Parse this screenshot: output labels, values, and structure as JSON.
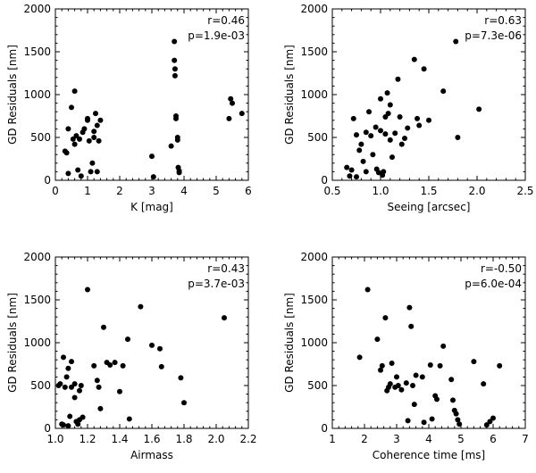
{
  "chart_data": [
    {
      "type": "scatter",
      "xlabel": "K [mag]",
      "ylabel": "GD Residuals [nm]",
      "xlim": [
        0,
        6
      ],
      "ylim": [
        0,
        2000
      ],
      "xticks": [
        "0",
        "1",
        "2",
        "3",
        "4",
        "5",
        "6"
      ],
      "yticks": [
        "0",
        "500",
        "1000",
        "1500",
        "2000"
      ],
      "annotations": [
        "r=0.46",
        "p=1.9e-03"
      ],
      "x": [
        0.3,
        0.35,
        0.4,
        0.4,
        0.5,
        0.55,
        0.6,
        0.6,
        0.65,
        0.7,
        0.75,
        0.8,
        0.85,
        0.9,
        1.0,
        1.0,
        1.05,
        1.1,
        1.15,
        1.2,
        1.2,
        1.25,
        1.3,
        1.3,
        1.35,
        1.4,
        3.0,
        3.05,
        3.6,
        3.7,
        3.7,
        3.72,
        3.72,
        3.75,
        3.75,
        3.8,
        3.8,
        3.82,
        3.85,
        3.85,
        5.4,
        5.45,
        5.5,
        5.8
      ],
      "y": [
        340,
        320,
        80,
        600,
        850,
        480,
        1040,
        420,
        520,
        120,
        480,
        50,
        560,
        600,
        700,
        720,
        460,
        100,
        200,
        570,
        500,
        780,
        100,
        640,
        460,
        700,
        280,
        40,
        400,
        1620,
        1400,
        1300,
        1220,
        750,
        720,
        500,
        470,
        150,
        110,
        90,
        720,
        950,
        900,
        780
      ]
    },
    {
      "type": "scatter",
      "xlabel": "Seeing [arcsec]",
      "ylabel": "GD Residuals [nm]",
      "xlim": [
        0.5,
        2.5
      ],
      "ylim": [
        0,
        2000
      ],
      "xticks": [
        "0.5",
        "1.0",
        "1.5",
        "2.0",
        "2.5"
      ],
      "yticks": [
        "0",
        "500",
        "1000",
        "1500",
        "2000"
      ],
      "annotations": [
        "r=0.63",
        "p=7.3e-06"
      ],
      "x": [
        0.65,
        0.68,
        0.7,
        0.72,
        0.75,
        0.75,
        0.78,
        0.8,
        0.82,
        0.85,
        0.85,
        0.88,
        0.9,
        0.92,
        0.95,
        0.96,
        0.98,
        1.0,
        1.0,
        1.02,
        1.03,
        1.05,
        1.05,
        1.07,
        1.08,
        1.1,
        1.1,
        1.12,
        1.15,
        1.18,
        1.2,
        1.22,
        1.25,
        1.28,
        1.35,
        1.38,
        1.4,
        1.45,
        1.5,
        1.65,
        1.78,
        1.8,
        2.02
      ],
      "y": [
        150,
        50,
        120,
        720,
        40,
        530,
        350,
        420,
        220,
        560,
        100,
        800,
        520,
        300,
        620,
        130,
        90,
        950,
        580,
        60,
        100,
        740,
        540,
        1020,
        780,
        880,
        470,
        270,
        550,
        1180,
        740,
        420,
        490,
        610,
        1410,
        720,
        640,
        1300,
        700,
        1040,
        1620,
        500,
        830
      ]
    },
    {
      "type": "scatter",
      "xlabel": "Airmass",
      "ylabel": "GD Residuals [nm]",
      "xlim": [
        1.0,
        2.2
      ],
      "ylim": [
        0,
        2000
      ],
      "xticks": [
        "1.0",
        "1.2",
        "1.4",
        "1.6",
        "1.8",
        "2.0",
        "2.2"
      ],
      "yticks": [
        "0",
        "500",
        "1000",
        "1500",
        "2000"
      ],
      "annotations": [
        "r=0.43",
        "p=3.7e-03"
      ],
      "x": [
        1.02,
        1.03,
        1.04,
        1.05,
        1.05,
        1.06,
        1.07,
        1.08,
        1.08,
        1.09,
        1.1,
        1.1,
        1.12,
        1.12,
        1.13,
        1.14,
        1.15,
        1.15,
        1.16,
        1.17,
        1.2,
        1.24,
        1.26,
        1.27,
        1.28,
        1.3,
        1.32,
        1.34,
        1.37,
        1.4,
        1.42,
        1.45,
        1.46,
        1.53,
        1.6,
        1.65,
        1.66,
        1.78,
        1.8,
        2.05
      ],
      "y": [
        500,
        520,
        50,
        830,
        40,
        480,
        600,
        700,
        30,
        140,
        780,
        480,
        360,
        520,
        80,
        50,
        100,
        440,
        500,
        130,
        1620,
        730,
        560,
        480,
        230,
        1180,
        770,
        740,
        770,
        430,
        730,
        1040,
        110,
        1420,
        970,
        930,
        720,
        590,
        300,
        1290
      ]
    },
    {
      "type": "scatter",
      "xlabel": "Coherence time [ms]",
      "ylabel": "GD Residuals [nm]",
      "xlim": [
        1,
        7
      ],
      "ylim": [
        0,
        2000
      ],
      "xticks": [
        "1",
        "2",
        "3",
        "4",
        "5",
        "6",
        "7"
      ],
      "yticks": [
        "0",
        "500",
        "1000",
        "1500",
        "2000"
      ],
      "annotations": [
        "r=-0.50",
        "p=6.0e-04"
      ],
      "x": [
        1.85,
        2.1,
        2.4,
        2.5,
        2.55,
        2.65,
        2.7,
        2.75,
        2.8,
        2.85,
        2.95,
        3.0,
        3.05,
        3.15,
        3.3,
        3.35,
        3.4,
        3.45,
        3.5,
        3.55,
        3.6,
        3.8,
        3.85,
        4.05,
        4.1,
        4.2,
        4.25,
        4.35,
        4.45,
        4.7,
        4.75,
        4.8,
        4.85,
        4.9,
        4.95,
        5.4,
        5.7,
        5.8,
        5.9,
        6.0,
        6.2
      ],
      "y": [
        830,
        1620,
        1040,
        680,
        730,
        1290,
        440,
        480,
        520,
        760,
        480,
        600,
        500,
        450,
        530,
        90,
        1410,
        1190,
        500,
        280,
        620,
        600,
        70,
        740,
        110,
        380,
        340,
        730,
        960,
        570,
        330,
        210,
        170,
        100,
        50,
        780,
        520,
        40,
        80,
        120,
        730
      ]
    }
  ]
}
